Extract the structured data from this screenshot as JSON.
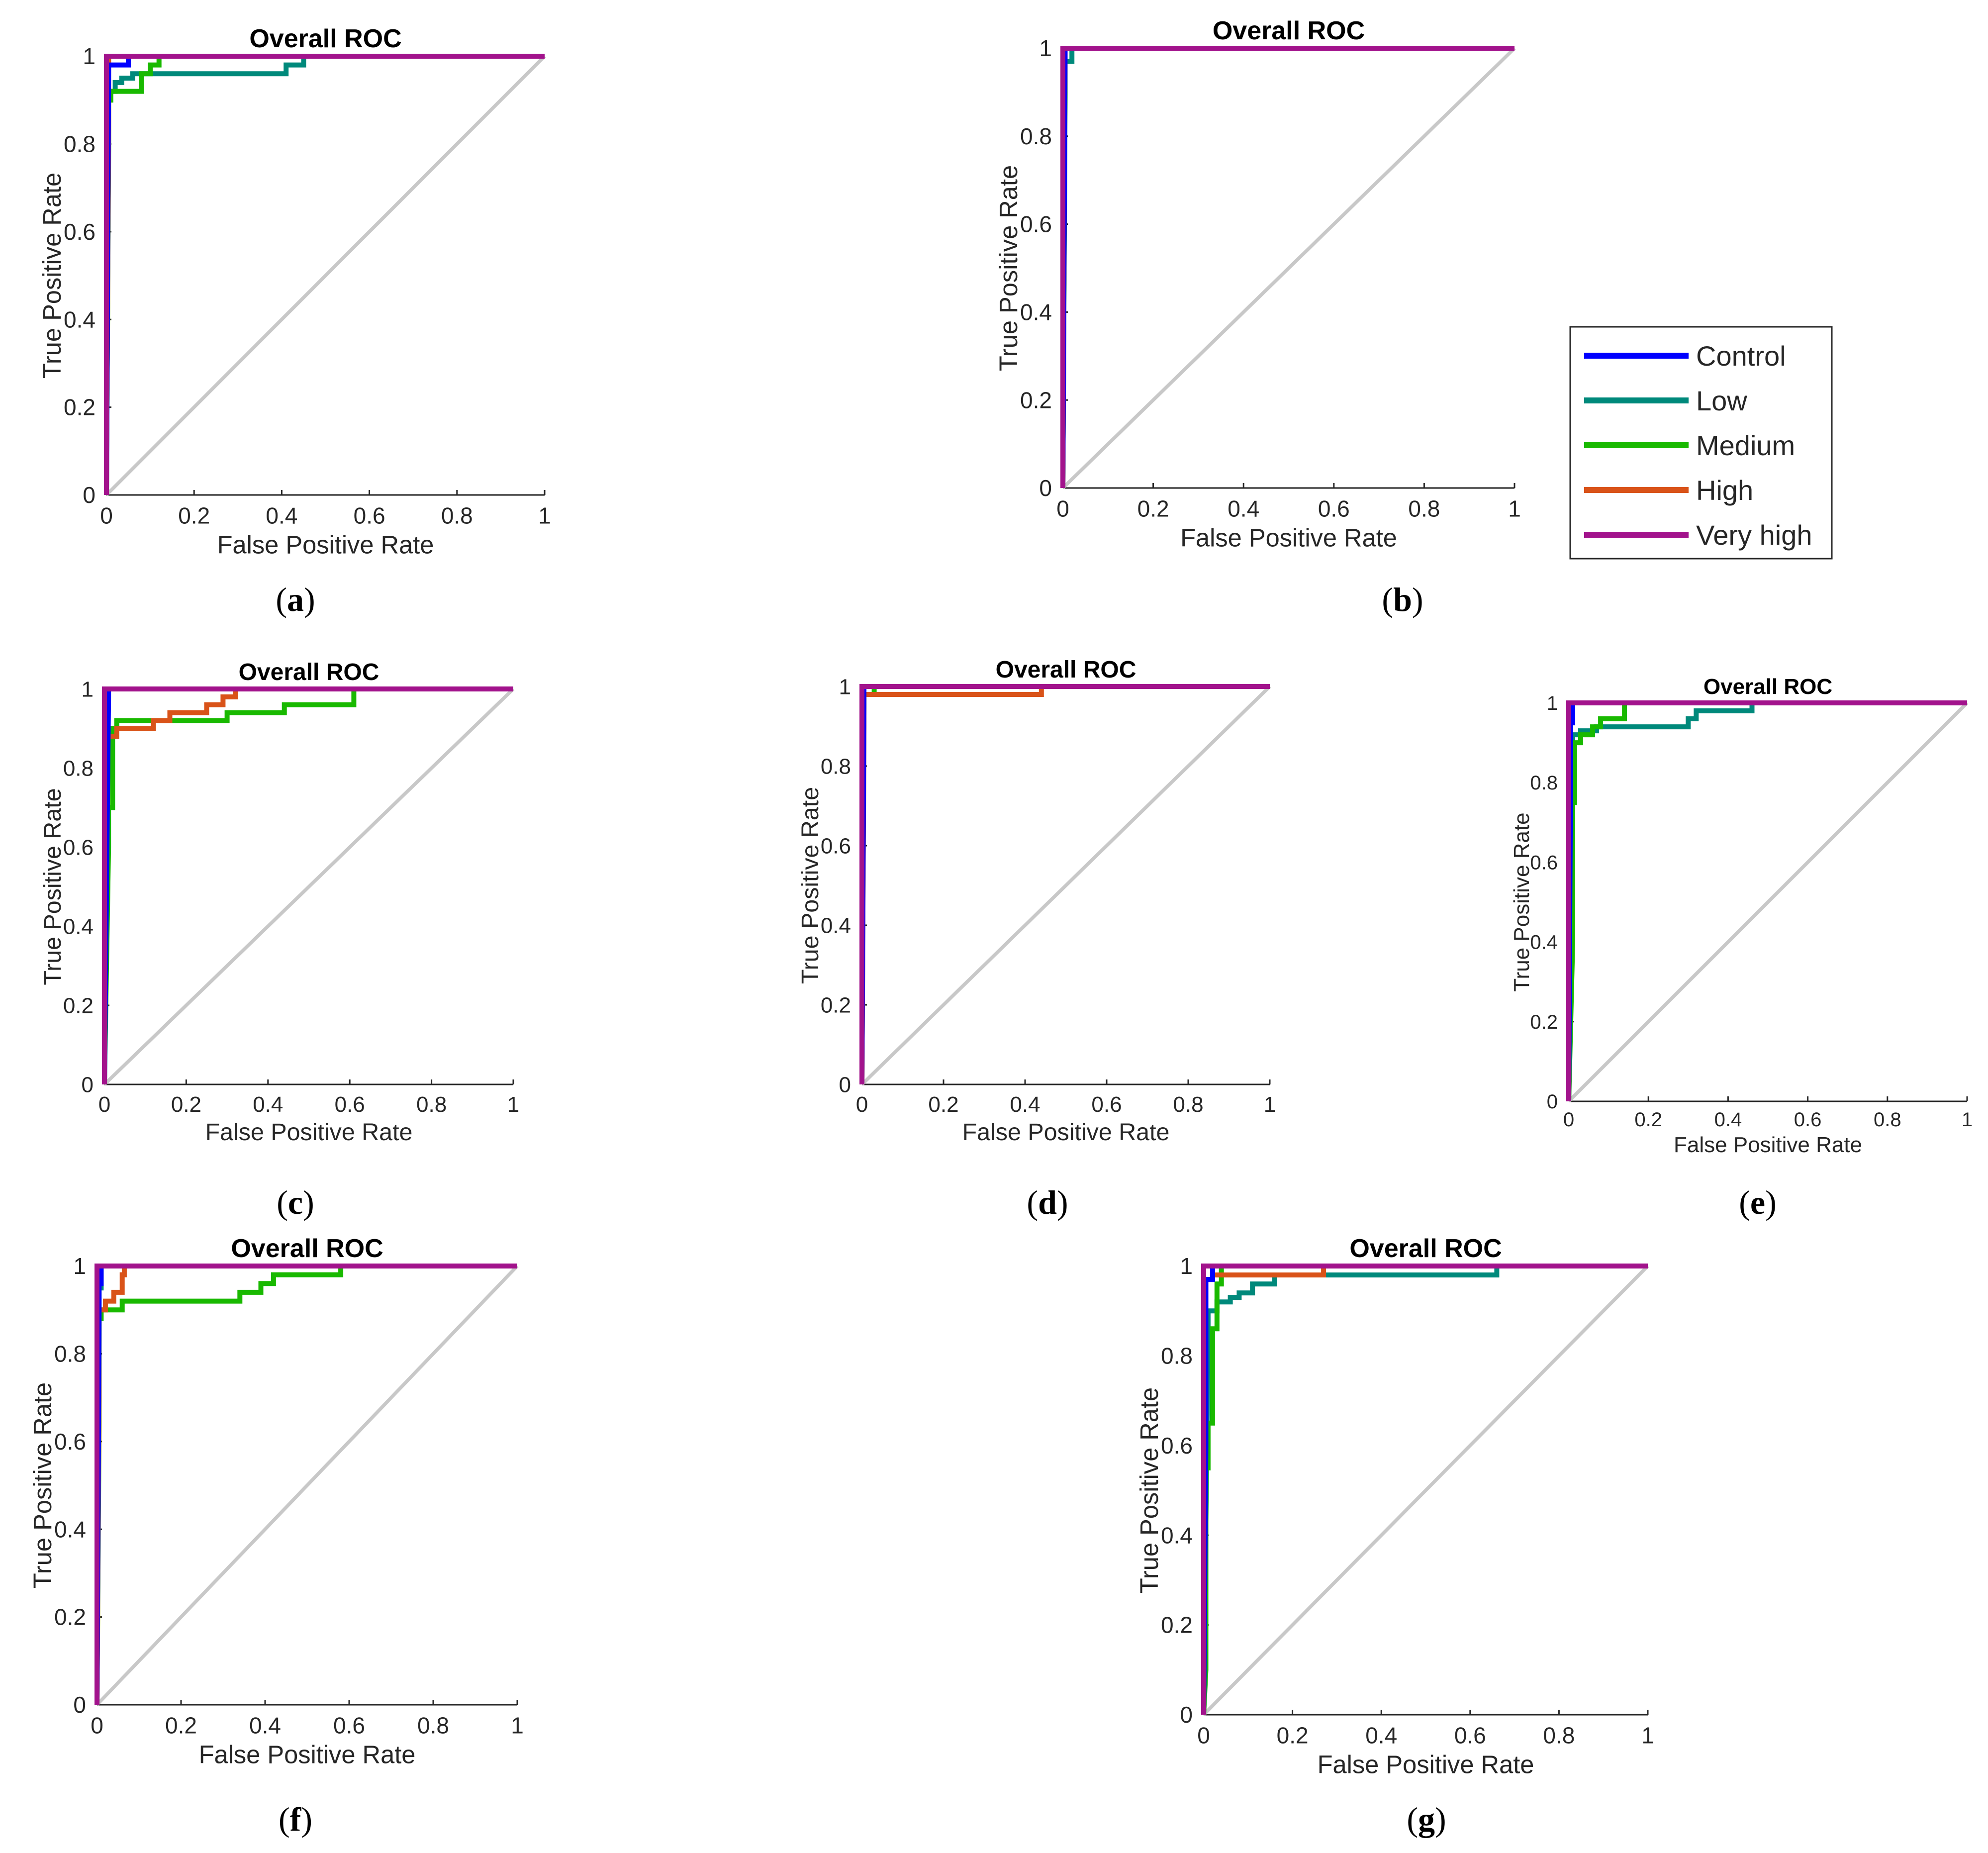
{
  "chart_data": [
    {
      "id": "a",
      "caption": "a",
      "type": "line",
      "title": "Overall ROC",
      "xlabel": "False Positive Rate",
      "ylabel": "True Positive Rate",
      "xlim": [
        0,
        1
      ],
      "ylim": [
        0,
        1
      ],
      "xticks": [
        "0",
        "0.2",
        "0.4",
        "0.6",
        "0.8",
        "1"
      ],
      "yticks": [
        "0",
        "0.2",
        "0.4",
        "0.6",
        "0.8",
        "1"
      ],
      "series": [
        {
          "name": "Diagonal",
          "color": "#c8c8c8",
          "x": [
            0,
            1
          ],
          "y": [
            0,
            1
          ]
        },
        {
          "name": "Low",
          "color": "#00897b",
          "x": [
            0,
            0.005,
            0.005,
            0.02,
            0.02,
            0.035,
            0.035,
            0.06,
            0.06,
            0.41,
            0.41,
            0.45,
            0.45,
            1
          ],
          "y": [
            0,
            0.85,
            0.92,
            0.92,
            0.94,
            0.94,
            0.95,
            0.95,
            0.96,
            0.96,
            0.98,
            0.98,
            1,
            1
          ]
        },
        {
          "name": "Medium",
          "color": "#19b900",
          "x": [
            0,
            0.005,
            0.005,
            0.01,
            0.01,
            0.08,
            0.08,
            0.1,
            0.1,
            0.12,
            0.12,
            1
          ],
          "y": [
            0,
            0.8,
            0.9,
            0.9,
            0.92,
            0.92,
            0.96,
            0.96,
            0.98,
            0.98,
            1,
            1
          ]
        },
        {
          "name": "High",
          "color": "#d95319",
          "x": [
            0,
            0.005,
            0.005,
            1
          ],
          "y": [
            0,
            0.85,
            1,
            1
          ]
        },
        {
          "name": "Control",
          "color": "#0000ff",
          "x": [
            0,
            0.005,
            0.005,
            0.05,
            0.05,
            1
          ],
          "y": [
            0,
            0.98,
            0.98,
            0.98,
            1,
            1
          ]
        },
        {
          "name": "Very high",
          "color": "#a2138c",
          "x": [
            0,
            0,
            0.005,
            1
          ],
          "y": [
            0,
            1,
            1,
            1
          ]
        }
      ]
    },
    {
      "id": "b",
      "caption": "b",
      "type": "line",
      "title": "Overall ROC",
      "xlabel": "False Positive Rate",
      "ylabel": "True Positive Rate",
      "xlim": [
        0,
        1
      ],
      "ylim": [
        0,
        1
      ],
      "xticks": [
        "0",
        "0.2",
        "0.4",
        "0.6",
        "0.8",
        "1"
      ],
      "yticks": [
        "0",
        "0.2",
        "0.4",
        "0.6",
        "0.8",
        "1"
      ],
      "series": [
        {
          "name": "Diagonal",
          "color": "#c8c8c8",
          "x": [
            0,
            1
          ],
          "y": [
            0,
            1
          ]
        },
        {
          "name": "Low",
          "color": "#00897b",
          "x": [
            0,
            0.005,
            0.005,
            0.02,
            0.02,
            1
          ],
          "y": [
            0,
            0.95,
            0.97,
            0.97,
            1,
            1
          ]
        },
        {
          "name": "Medium",
          "color": "#19b900",
          "x": [
            0,
            0.005,
            0.005,
            1
          ],
          "y": [
            0,
            0.9,
            1,
            1
          ]
        },
        {
          "name": "High",
          "color": "#d95319",
          "x": [
            0,
            0.005,
            1
          ],
          "y": [
            0,
            1,
            1
          ]
        },
        {
          "name": "Control",
          "color": "#0000ff",
          "x": [
            0,
            0.005,
            1
          ],
          "y": [
            0,
            1,
            1
          ]
        },
        {
          "name": "Very high",
          "color": "#a2138c",
          "x": [
            0,
            0,
            1
          ],
          "y": [
            0,
            1,
            1
          ]
        }
      ]
    },
    {
      "id": "c",
      "caption": "c",
      "type": "line",
      "title": "Overall ROC",
      "xlabel": "False Positive Rate",
      "ylabel": "True Positive Rate",
      "xlim": [
        0,
        1
      ],
      "ylim": [
        0,
        1
      ],
      "xticks": [
        "0",
        "0.2",
        "0.4",
        "0.6",
        "0.8",
        "1"
      ],
      "yticks": [
        "0",
        "0.2",
        "0.4",
        "0.6",
        "0.8",
        "1"
      ],
      "series": [
        {
          "name": "Diagonal",
          "color": "#c8c8c8",
          "x": [
            0,
            1
          ],
          "y": [
            0,
            1
          ]
        },
        {
          "name": "Medium",
          "color": "#19b900",
          "x": [
            0,
            0.01,
            0.01,
            0.02,
            0.02,
            0.03,
            0.03,
            0.3,
            0.3,
            0.44,
            0.44,
            0.61,
            0.61,
            1
          ],
          "y": [
            0,
            0.6,
            0.7,
            0.7,
            0.9,
            0.9,
            0.92,
            0.92,
            0.94,
            0.94,
            0.96,
            0.96,
            1,
            1
          ]
        },
        {
          "name": "High",
          "color": "#d95319",
          "x": [
            0,
            0.005,
            0.005,
            0.03,
            0.03,
            0.12,
            0.12,
            0.16,
            0.16,
            0.25,
            0.25,
            0.29,
            0.29,
            0.32,
            0.32,
            1
          ],
          "y": [
            0,
            0.8,
            0.88,
            0.88,
            0.9,
            0.9,
            0.92,
            0.92,
            0.94,
            0.94,
            0.96,
            0.96,
            0.98,
            0.98,
            1,
            1
          ]
        },
        {
          "name": "Low",
          "color": "#00897b",
          "x": [
            0,
            0.005,
            1
          ],
          "y": [
            0,
            1,
            1
          ]
        },
        {
          "name": "Control",
          "color": "#0000ff",
          "x": [
            0,
            0.01,
            0.01,
            1
          ],
          "y": [
            0,
            0.98,
            1,
            1
          ]
        },
        {
          "name": "Very high",
          "color": "#a2138c",
          "x": [
            0,
            0,
            1
          ],
          "y": [
            0,
            1,
            1
          ]
        }
      ]
    },
    {
      "id": "d",
      "caption": "d",
      "type": "line",
      "title": "Overall ROC",
      "xlabel": "False Positive Rate",
      "ylabel": "True Positive Rate",
      "xlim": [
        0,
        1
      ],
      "ylim": [
        0,
        1
      ],
      "xticks": [
        "0",
        "0.2",
        "0.4",
        "0.6",
        "0.8",
        "1"
      ],
      "yticks": [
        "0",
        "0.2",
        "0.4",
        "0.6",
        "0.8",
        "1"
      ],
      "series": [
        {
          "name": "Diagonal",
          "color": "#c8c8c8",
          "x": [
            0,
            1
          ],
          "y": [
            0,
            1
          ]
        },
        {
          "name": "Medium",
          "color": "#19b900",
          "x": [
            0,
            0.005,
            0.005,
            0.03,
            0.03,
            1
          ],
          "y": [
            0,
            0.95,
            0.98,
            0.98,
            1,
            1
          ]
        },
        {
          "name": "High",
          "color": "#d95319",
          "x": [
            0,
            0.005,
            0.005,
            0.44,
            0.44,
            1
          ],
          "y": [
            0,
            0.9,
            0.98,
            0.98,
            1,
            1
          ]
        },
        {
          "name": "Control",
          "color": "#0000ff",
          "x": [
            0,
            0.005,
            1
          ],
          "y": [
            0,
            1,
            1
          ]
        },
        {
          "name": "Very high",
          "color": "#a2138c",
          "x": [
            0,
            0,
            1
          ],
          "y": [
            0,
            1,
            1
          ]
        }
      ]
    },
    {
      "id": "e",
      "caption": "e",
      "type": "line",
      "title": "Overall ROC",
      "xlabel": "False Positive Rate",
      "ylabel": "True Positive Rate",
      "xlim": [
        0,
        1
      ],
      "ylim": [
        0,
        1
      ],
      "xticks": [
        "0",
        "0.2",
        "0.4",
        "0.6",
        "0.8",
        "1"
      ],
      "yticks": [
        "0",
        "0.2",
        "0.4",
        "0.6",
        "0.8",
        "1"
      ],
      "series": [
        {
          "name": "Diagonal",
          "color": "#c8c8c8",
          "x": [
            0,
            1
          ],
          "y": [
            0,
            1
          ]
        },
        {
          "name": "Low",
          "color": "#00897b",
          "x": [
            0,
            0.01,
            0.01,
            0.03,
            0.03,
            0.07,
            0.07,
            0.3,
            0.3,
            0.32,
            0.32,
            0.46,
            0.46,
            1
          ],
          "y": [
            0,
            0.88,
            0.92,
            0.92,
            0.93,
            0.93,
            0.94,
            0.94,
            0.96,
            0.96,
            0.98,
            0.98,
            1,
            1
          ]
        },
        {
          "name": "Medium",
          "color": "#19b900",
          "x": [
            0,
            0.01,
            0.01,
            0.015,
            0.015,
            0.03,
            0.03,
            0.06,
            0.06,
            0.08,
            0.08,
            0.14,
            0.14,
            1
          ],
          "y": [
            0,
            0.4,
            0.75,
            0.75,
            0.9,
            0.9,
            0.92,
            0.92,
            0.94,
            0.94,
            0.96,
            0.96,
            1,
            1
          ]
        },
        {
          "name": "High",
          "color": "#d95319",
          "x": [
            0,
            0.005,
            1
          ],
          "y": [
            0,
            1,
            1
          ]
        },
        {
          "name": "Control",
          "color": "#0000ff",
          "x": [
            0,
            0.005,
            0.005,
            0.01,
            0.01,
            1
          ],
          "y": [
            0,
            0.9,
            0.95,
            0.95,
            1,
            1
          ]
        },
        {
          "name": "Very high",
          "color": "#a2138c",
          "x": [
            0,
            0,
            1
          ],
          "y": [
            0,
            1,
            1
          ]
        }
      ]
    },
    {
      "id": "f",
      "caption": "f",
      "type": "line",
      "title": "Overall ROC",
      "xlabel": "False Positive Rate",
      "ylabel": "True Positive Rate",
      "xlim": [
        0,
        1
      ],
      "ylim": [
        0,
        1
      ],
      "xticks": [
        "0",
        "0.2",
        "0.4",
        "0.6",
        "0.8",
        "1"
      ],
      "yticks": [
        "0",
        "0.2",
        "0.4",
        "0.6",
        "0.8",
        "1"
      ],
      "series": [
        {
          "name": "Diagonal",
          "color": "#c8c8c8",
          "x": [
            0,
            1
          ],
          "y": [
            0,
            1
          ]
        },
        {
          "name": "Medium",
          "color": "#19b900",
          "x": [
            0,
            0.005,
            0.005,
            0.01,
            0.01,
            0.06,
            0.06,
            0.34,
            0.34,
            0.39,
            0.39,
            0.42,
            0.42,
            0.58,
            0.58,
            1
          ],
          "y": [
            0,
            0.64,
            0.88,
            0.88,
            0.9,
            0.9,
            0.92,
            0.92,
            0.94,
            0.94,
            0.96,
            0.96,
            0.98,
            0.98,
            1,
            1
          ]
        },
        {
          "name": "High",
          "color": "#d95319",
          "x": [
            0,
            0.005,
            0.005,
            0.02,
            0.02,
            0.04,
            0.04,
            0.06,
            0.06,
            0.065,
            0.065,
            1
          ],
          "y": [
            0,
            0.7,
            0.9,
            0.9,
            0.92,
            0.92,
            0.94,
            0.94,
            0.98,
            0.98,
            1,
            1
          ]
        },
        {
          "name": "Low",
          "color": "#00897b",
          "x": [
            0,
            0.005,
            0.005,
            0.01,
            0.01,
            1
          ],
          "y": [
            0,
            0.85,
            0.95,
            0.95,
            1,
            1
          ]
        },
        {
          "name": "Control",
          "color": "#0000ff",
          "x": [
            0,
            0.005,
            0.005,
            0.01,
            0.01,
            1
          ],
          "y": [
            0,
            0.9,
            0.96,
            0.96,
            1,
            1
          ]
        },
        {
          "name": "Very high",
          "color": "#a2138c",
          "x": [
            0,
            0,
            1
          ],
          "y": [
            0,
            1,
            1
          ]
        }
      ]
    },
    {
      "id": "g",
      "caption": "g",
      "type": "line",
      "title": "Overall ROC",
      "xlabel": "False Positive Rate",
      "ylabel": "True Positive Rate",
      "xlim": [
        0,
        1
      ],
      "ylim": [
        0,
        1
      ],
      "xticks": [
        "0",
        "0.2",
        "0.4",
        "0.6",
        "0.8",
        "1"
      ],
      "yticks": [
        "0",
        "0.2",
        "0.4",
        "0.6",
        "0.8",
        "1"
      ],
      "series": [
        {
          "name": "Diagonal",
          "color": "#c8c8c8",
          "x": [
            0,
            1
          ],
          "y": [
            0,
            1
          ]
        },
        {
          "name": "Low",
          "color": "#00897b",
          "x": [
            0,
            0.01,
            0.01,
            0.03,
            0.03,
            0.06,
            0.06,
            0.08,
            0.08,
            0.11,
            0.11,
            0.16,
            0.16,
            0.66,
            0.66,
            1
          ],
          "y": [
            0,
            0.85,
            0.9,
            0.9,
            0.92,
            0.92,
            0.93,
            0.93,
            0.94,
            0.94,
            0.96,
            0.96,
            0.98,
            0.98,
            1,
            1
          ]
        },
        {
          "name": "Medium",
          "color": "#19b900",
          "x": [
            0,
            0.005,
            0.005,
            0.01,
            0.01,
            0.02,
            0.02,
            0.03,
            0.03,
            0.04,
            0.04,
            1
          ],
          "y": [
            0,
            0.1,
            0.55,
            0.55,
            0.65,
            0.65,
            0.86,
            0.86,
            0.96,
            0.96,
            1,
            1
          ]
        },
        {
          "name": "High",
          "color": "#d95319",
          "x": [
            0,
            0.005,
            0.005,
            0.02,
            0.02,
            0.27,
            0.27,
            1
          ],
          "y": [
            0,
            0.9,
            0.97,
            0.97,
            0.98,
            0.98,
            1,
            1
          ]
        },
        {
          "name": "Control",
          "color": "#0000ff",
          "x": [
            0,
            0.005,
            0.005,
            0.02,
            0.02,
            1
          ],
          "y": [
            0,
            0.6,
            0.97,
            0.97,
            1,
            1
          ]
        },
        {
          "name": "Very high",
          "color": "#a2138c",
          "x": [
            0,
            0,
            1
          ],
          "y": [
            0,
            1,
            1
          ]
        }
      ]
    }
  ],
  "legend": {
    "placement": "right of panel b",
    "entries": [
      {
        "label": "Control",
        "color": "#0000ff"
      },
      {
        "label": "Low",
        "color": "#00897b"
      },
      {
        "label": "Medium",
        "color": "#19b900"
      },
      {
        "label": "High",
        "color": "#d95319"
      },
      {
        "label": "Very high",
        "color": "#a2138c"
      }
    ]
  }
}
